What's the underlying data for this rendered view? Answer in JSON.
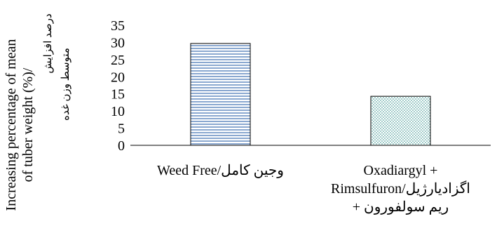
{
  "chart_data": {
    "type": "bar",
    "categories": [
      [
        "Weed Free/وجین کامل"
      ],
      [
        "Oxadiargyl +",
        "Rimsulfuron/اگزادیارژیل",
        "ریم سولفورون +"
      ]
    ],
    "values": [
      29.7,
      14.3
    ],
    "ylim": [
      0,
      35
    ],
    "yticks": [
      0,
      5,
      10,
      15,
      20,
      25,
      30,
      35
    ],
    "ylabel": [
      "Increasing percentage of mean",
      "of tuber weight (%)/"
    ],
    "ylabel_fa": [
      "درصد افزایش",
      "متوسط وزن غده"
    ],
    "bar_fill_patterns": [
      "horizontal-lines",
      "dots"
    ],
    "colors": {
      "bar1_line": "#4a7ab8",
      "bar2_dot": "#2f8f8a",
      "axis": "#000000"
    },
    "grid": false,
    "legend": "none"
  }
}
